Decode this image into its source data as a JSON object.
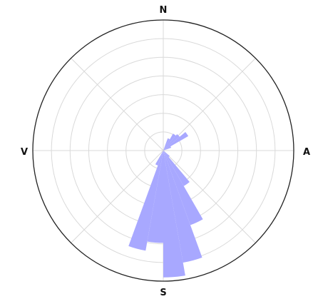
{
  "chart_data": {
    "type": "polar-bar",
    "title": "",
    "directions": {
      "north": "N",
      "east": "A",
      "south": "S",
      "west": "V"
    },
    "radial_rings": 7,
    "radial_max": 7,
    "spokes_deg": [
      0,
      45,
      90,
      135,
      180,
      225,
      270,
      315
    ],
    "bin_width_deg": 10,
    "grid": true,
    "colors": {
      "petal": "#a8a8ff",
      "grid": "#d9d9d9",
      "outer_ring": "#222222"
    },
    "petals": [
      {
        "direction_deg": 195,
        "value": 5.45
      },
      {
        "direction_deg": 185,
        "value": 4.95
      },
      {
        "direction_deg": 175,
        "value": 6.8
      },
      {
        "direction_deg": 165,
        "value": 6.1
      },
      {
        "direction_deg": 155,
        "value": 4.25
      },
      {
        "direction_deg": 145,
        "value": 2.2
      },
      {
        "direction_deg": 205,
        "value": 0.85
      },
      {
        "direction_deg": 135,
        "value": 0.45
      },
      {
        "direction_deg": 25,
        "value": 0.7
      },
      {
        "direction_deg": 35,
        "value": 1.05
      },
      {
        "direction_deg": 45,
        "value": 1.15
      },
      {
        "direction_deg": 55,
        "value": 1.55
      },
      {
        "direction_deg": 65,
        "value": 0.45
      }
    ]
  }
}
